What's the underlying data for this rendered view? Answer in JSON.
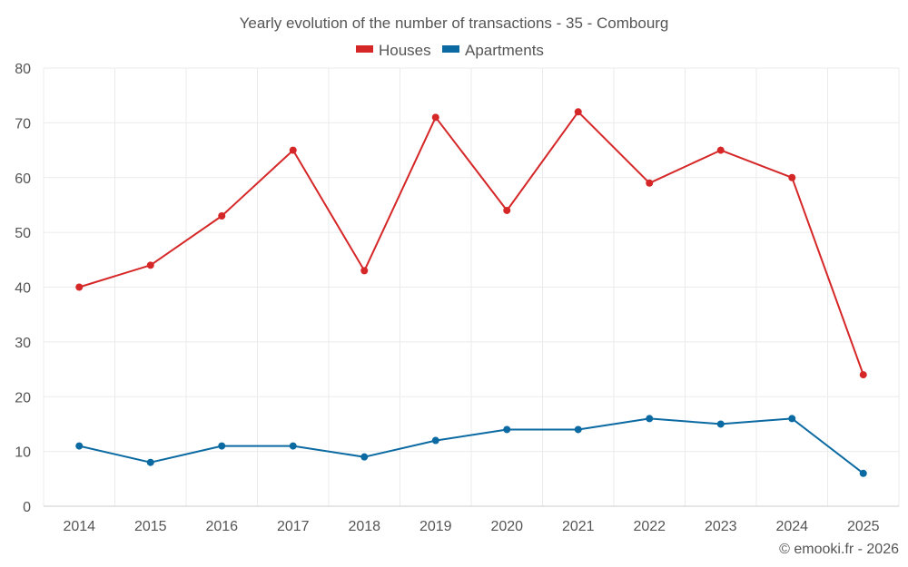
{
  "chart_data": {
    "type": "line",
    "title": "Yearly evolution of the number of transactions - 35 - Combourg",
    "categories": [
      "2014",
      "2015",
      "2016",
      "2017",
      "2018",
      "2019",
      "2020",
      "2021",
      "2022",
      "2023",
      "2024",
      "2025"
    ],
    "series": [
      {
        "name": "Houses",
        "color": "#d62728",
        "values": [
          40,
          44,
          53,
          65,
          43,
          71,
          54,
          72,
          59,
          65,
          60,
          24
        ]
      },
      {
        "name": "Apartments",
        "color": "#0b6aa2",
        "values": [
          11,
          8,
          11,
          11,
          9,
          12,
          14,
          14,
          16,
          15,
          16,
          6
        ]
      }
    ],
    "ylim": [
      0,
      80
    ],
    "yticks": [
      0,
      10,
      20,
      30,
      40,
      50,
      60,
      70,
      80
    ],
    "xlabel": "",
    "ylabel": "",
    "grid": true,
    "legend_position": "top-center"
  },
  "credit": "© emooki.fr - 2026"
}
